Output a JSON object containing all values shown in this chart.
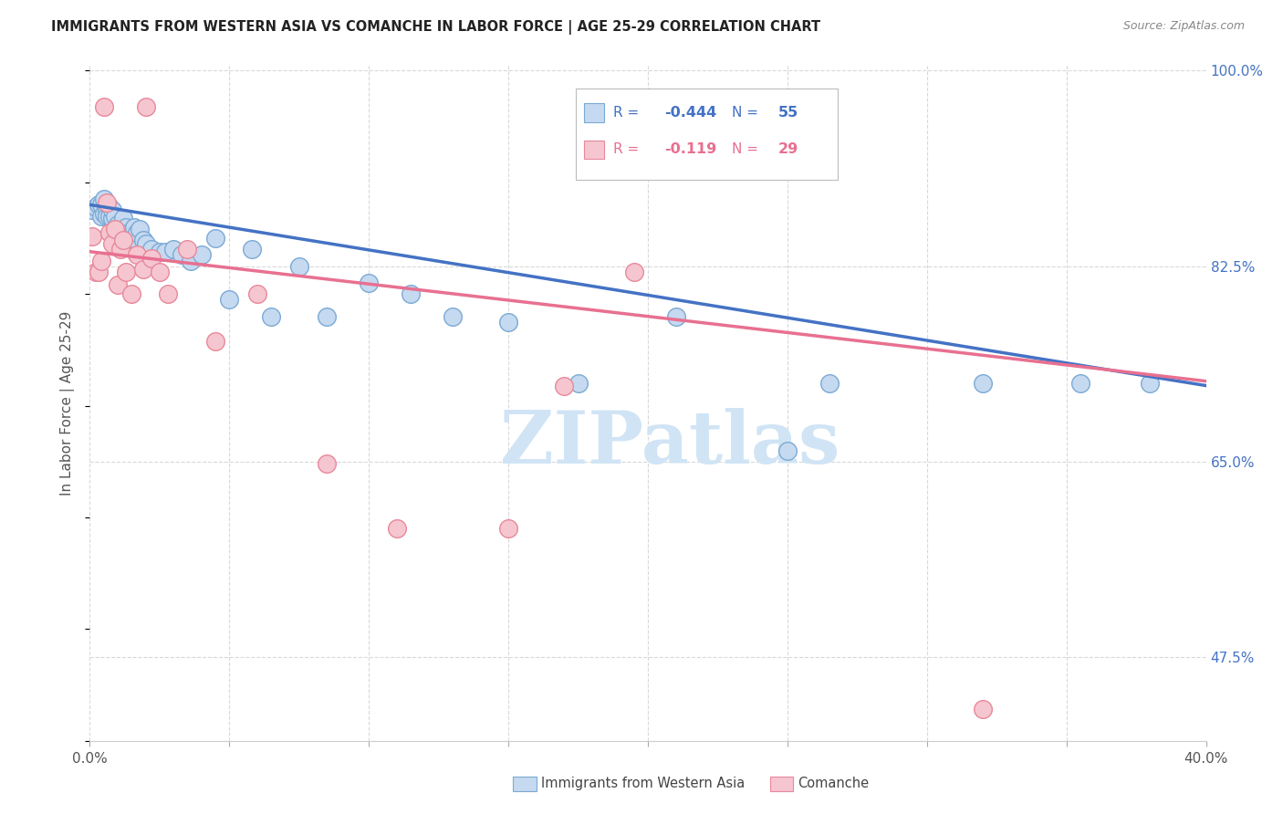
{
  "title": "IMMIGRANTS FROM WESTERN ASIA VS COMANCHE IN LABOR FORCE | AGE 25-29 CORRELATION CHART",
  "source": "Source: ZipAtlas.com",
  "ylabel": "In Labor Force | Age 25-29",
  "xlim": [
    0.0,
    0.4
  ],
  "ylim": [
    0.4,
    1.005
  ],
  "xticks": [
    0.0,
    0.05,
    0.1,
    0.15,
    0.2,
    0.25,
    0.3,
    0.35,
    0.4
  ],
  "ytick_labels": {
    "1.00": "100.0%",
    "0.825": "82.5%",
    "0.65": "65.0%",
    "0.475": "47.5%"
  },
  "ytick_vals": [
    1.0,
    0.825,
    0.65,
    0.475
  ],
  "blue_fill": "#c5d9f0",
  "blue_edge": "#7baad4",
  "pink_fill": "#f5c6d0",
  "pink_edge": "#e8889a",
  "blue_line_color": "#4472c4",
  "pink_line_color": "#e87090",
  "grid_color": "#d9d9d9",
  "watermark_text": "ZIPatlas",
  "watermark_color": "#d0e4f5",
  "legend_R_blue": "-0.444",
  "legend_N_blue": "55",
  "legend_R_pink": "-0.119",
  "legend_N_pink": "29",
  "blue_trend_y0": 0.88,
  "blue_trend_y1": 0.718,
  "pink_trend_y0": 0.838,
  "pink_trend_y1": 0.722,
  "blue_x": [
    0.001,
    0.002,
    0.003,
    0.004,
    0.004,
    0.005,
    0.005,
    0.006,
    0.006,
    0.007,
    0.007,
    0.008,
    0.008,
    0.009,
    0.009,
    0.01,
    0.01,
    0.011,
    0.011,
    0.012,
    0.012,
    0.013,
    0.013,
    0.014,
    0.014,
    0.015,
    0.016,
    0.017,
    0.018,
    0.019,
    0.02,
    0.022,
    0.025,
    0.027,
    0.03,
    0.033,
    0.036,
    0.04,
    0.045,
    0.05,
    0.058,
    0.065,
    0.075,
    0.085,
    0.1,
    0.115,
    0.13,
    0.15,
    0.175,
    0.21,
    0.25,
    0.265,
    0.32,
    0.355,
    0.38
  ],
  "blue_y": [
    0.875,
    0.878,
    0.88,
    0.87,
    0.88,
    0.872,
    0.885,
    0.875,
    0.87,
    0.878,
    0.87,
    0.868,
    0.875,
    0.87,
    0.858,
    0.86,
    0.862,
    0.855,
    0.86,
    0.855,
    0.868,
    0.852,
    0.86,
    0.855,
    0.845,
    0.85,
    0.86,
    0.855,
    0.858,
    0.848,
    0.845,
    0.84,
    0.838,
    0.838,
    0.84,
    0.835,
    0.83,
    0.835,
    0.85,
    0.795,
    0.84,
    0.78,
    0.825,
    0.78,
    0.81,
    0.8,
    0.78,
    0.775,
    0.72,
    0.78,
    0.66,
    0.72,
    0.72,
    0.72,
    0.72
  ],
  "pink_x": [
    0.001,
    0.002,
    0.003,
    0.004,
    0.005,
    0.006,
    0.007,
    0.008,
    0.009,
    0.01,
    0.011,
    0.012,
    0.013,
    0.015,
    0.017,
    0.019,
    0.02,
    0.022,
    0.025,
    0.028,
    0.035,
    0.045,
    0.06,
    0.085,
    0.11,
    0.15,
    0.17,
    0.195,
    0.32
  ],
  "pink_y": [
    0.852,
    0.82,
    0.82,
    0.83,
    0.968,
    0.882,
    0.855,
    0.845,
    0.858,
    0.808,
    0.84,
    0.848,
    0.82,
    0.8,
    0.835,
    0.822,
    0.968,
    0.832,
    0.82,
    0.8,
    0.84,
    0.758,
    0.8,
    0.648,
    0.59,
    0.59,
    0.718,
    0.82,
    0.428
  ]
}
